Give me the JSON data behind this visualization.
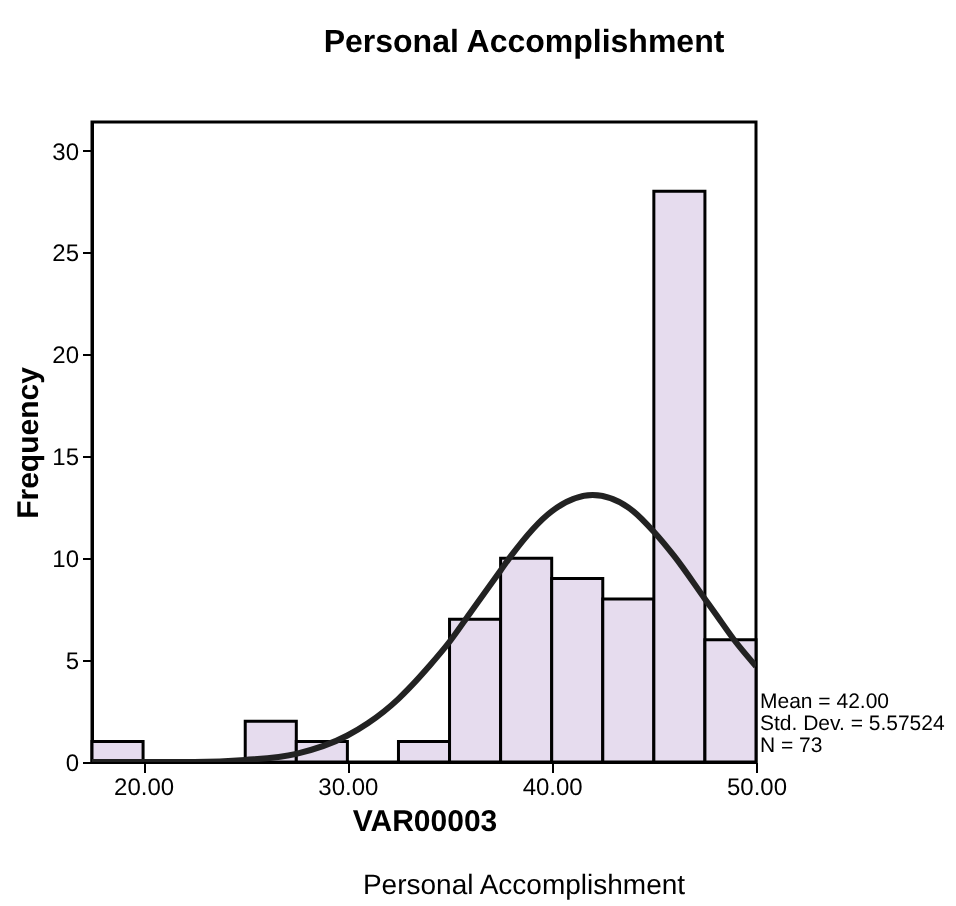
{
  "chart_data": {
    "type": "histogram",
    "title": "Personal Accomplishment",
    "xlabel": "VAR00003",
    "ylabel": "Frequency",
    "bins": [
      17.5,
      20,
      22.5,
      25,
      27.5,
      30,
      32.5,
      35,
      37.5,
      40,
      42.5,
      45,
      47.5,
      50
    ],
    "values": [
      1,
      0,
      0,
      2,
      1,
      0,
      1,
      7,
      10,
      9,
      8,
      28,
      6
    ],
    "color": "#e6dcee",
    "series": [
      {
        "type": "line",
        "color": "#222222",
        "x": [
          17.5,
          20,
          22.5,
          25,
          27.5,
          30,
          31,
          32.5,
          33,
          34,
          35,
          36,
          37.5,
          38,
          40,
          42,
          44,
          45,
          46,
          47.5,
          48,
          49,
          50
        ],
        "values": [
          0.0,
          0.0,
          0.0,
          0.1,
          0.4,
          1.3,
          1.9,
          3.1,
          3.6,
          4.7,
          5.9,
          7.3,
          9.4,
          10.1,
          12.3,
          13.1,
          12.3,
          11.3,
          10.1,
          8.0,
          7.3,
          5.9,
          4.7
        ]
      }
    ],
    "xlim": [
      17.5,
      50
    ],
    "ylim": [
      0,
      31.4
    ],
    "xticks": [
      {
        "value": 20,
        "label": "20.00"
      },
      {
        "value": 30,
        "label": "30.00"
      },
      {
        "value": 40,
        "label": "40.00"
      },
      {
        "value": 50,
        "label": "50.00"
      }
    ],
    "yticks": [
      0,
      5,
      10,
      15,
      20,
      25,
      30
    ],
    "grid": false,
    "annotations": [
      "Mean = 42.00",
      "Std. Dev. = 5.57524",
      "N = 73",
      "Personal Accomplishment"
    ]
  }
}
